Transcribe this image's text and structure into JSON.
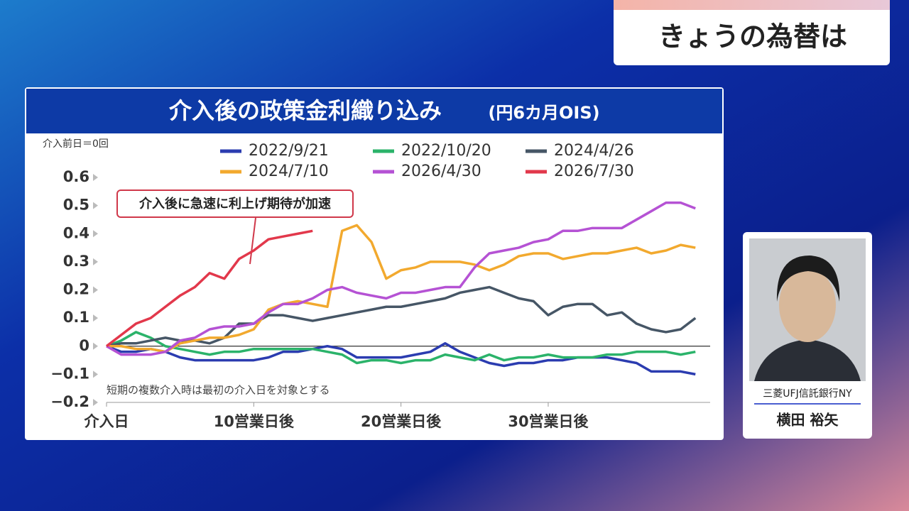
{
  "header": {
    "title": "きょうの為替は"
  },
  "chart_data": {
    "type": "line",
    "title": "介入後の政策金利織り込み",
    "subtitle": "(円6カ月OIS)",
    "note": "介入前日＝0回",
    "annotation": "介入後に急速に利上げ期待が加速",
    "footnote": "短期の複数介入時は最初の介入日を対象とする",
    "x": [
      0,
      1,
      2,
      3,
      4,
      5,
      6,
      7,
      8,
      9,
      10,
      11,
      12,
      13,
      14,
      15,
      16,
      17,
      18,
      19,
      20,
      21,
      22,
      23,
      24,
      25,
      26,
      27,
      28,
      29,
      30,
      31,
      32,
      33,
      34,
      35,
      36,
      37,
      38,
      39,
      40
    ],
    "xlim": [
      0,
      41
    ],
    "xticks": [
      {
        "value": 0,
        "label": "介入日"
      },
      {
        "value": 10,
        "label": "10営業日後"
      },
      {
        "value": 20,
        "label": "20営業日後"
      },
      {
        "value": 30,
        "label": "30営業日後"
      }
    ],
    "ylim": [
      -0.2,
      0.6
    ],
    "yticks": [
      0.6,
      0.5,
      0.4,
      0.3,
      0.2,
      0.1,
      0,
      {
        "value": -0.1,
        "label": "−0.1"
      },
      {
        "value": -0.2,
        "label": "−0.2"
      }
    ],
    "series": [
      {
        "name": "2022/9/21",
        "color": "#2b3cb0",
        "values": [
          0,
          -0.02,
          -0.02,
          -0.01,
          -0.02,
          -0.04,
          -0.05,
          -0.05,
          -0.05,
          -0.05,
          -0.05,
          -0.04,
          -0.02,
          -0.02,
          -0.01,
          0,
          -0.01,
          -0.04,
          -0.04,
          -0.04,
          -0.04,
          -0.03,
          -0.02,
          0.01,
          -0.02,
          -0.04,
          -0.06,
          -0.07,
          -0.06,
          -0.06,
          -0.05,
          -0.05,
          -0.04,
          -0.04,
          -0.04,
          -0.05,
          -0.06,
          -0.09,
          -0.09,
          -0.09,
          -0.1
        ]
      },
      {
        "name": "2022/10/20",
        "color": "#2bb36a",
        "values": [
          0,
          0.02,
          0.05,
          0.03,
          0,
          -0.01,
          -0.02,
          -0.03,
          -0.02,
          -0.02,
          -0.01,
          -0.01,
          -0.01,
          -0.01,
          -0.01,
          -0.02,
          -0.03,
          -0.06,
          -0.05,
          -0.05,
          -0.06,
          -0.05,
          -0.05,
          -0.03,
          -0.04,
          -0.05,
          -0.03,
          -0.05,
          -0.04,
          -0.04,
          -0.03,
          -0.04,
          -0.04,
          -0.04,
          -0.03,
          -0.03,
          -0.02,
          -0.02,
          -0.02,
          -0.03,
          -0.02
        ]
      },
      {
        "name": "2024/4/26",
        "color": "#465666",
        "values": [
          0,
          0.01,
          0.01,
          0.02,
          0.03,
          0.02,
          0.02,
          0.01,
          0.03,
          0.08,
          0.08,
          0.11,
          0.11,
          0.1,
          0.09,
          0.1,
          0.11,
          0.12,
          0.13,
          0.14,
          0.14,
          0.15,
          0.16,
          0.17,
          0.19,
          0.2,
          0.21,
          0.19,
          0.17,
          0.16,
          0.11,
          0.14,
          0.15,
          0.15,
          0.11,
          0.12,
          0.08,
          0.06,
          0.05,
          0.06,
          0.1
        ]
      },
      {
        "name": "2024/7/10",
        "color": "#f2a92e",
        "values": [
          0,
          0,
          -0.01,
          -0.01,
          -0.02,
          0.01,
          0.02,
          0.03,
          0.03,
          0.04,
          0.06,
          0.13,
          0.15,
          0.16,
          0.15,
          0.14,
          0.41,
          0.43,
          0.37,
          0.24,
          0.27,
          0.28,
          0.3,
          0.3,
          0.3,
          0.29,
          0.27,
          0.29,
          0.32,
          0.33,
          0.33,
          0.31,
          0.32,
          0.33,
          0.33,
          0.34,
          0.35,
          0.33,
          0.34,
          0.36,
          0.35
        ]
      },
      {
        "name": "2026/4/30",
        "color": "#b552d4",
        "values": [
          0,
          -0.03,
          -0.03,
          -0.03,
          -0.02,
          0.02,
          0.03,
          0.06,
          0.07,
          0.07,
          0.08,
          0.12,
          0.15,
          0.15,
          0.17,
          0.2,
          0.21,
          0.19,
          0.18,
          0.17,
          0.19,
          0.19,
          0.2,
          0.21,
          0.21,
          0.28,
          0.33,
          0.34,
          0.35,
          0.37,
          0.38,
          0.41,
          0.41,
          0.42,
          0.42,
          0.42,
          0.45,
          0.48,
          0.51,
          0.51,
          0.49
        ]
      },
      {
        "name": "2026/7/30",
        "color": "#e2384b",
        "values": [
          0,
          0.04,
          0.08,
          0.1,
          0.14,
          0.18,
          0.21,
          0.26,
          0.24,
          0.31,
          0.34,
          0.38,
          0.39,
          0.4,
          0.41,
          null,
          null,
          null,
          null,
          null,
          null,
          null,
          null,
          null,
          null,
          null,
          null,
          null,
          null,
          null,
          null,
          null,
          null,
          null,
          null,
          null,
          null,
          null,
          null,
          null,
          null
        ]
      }
    ]
  },
  "speaker": {
    "company": "三菱UFJ信託銀行NY",
    "name": "横田 裕矢"
  }
}
